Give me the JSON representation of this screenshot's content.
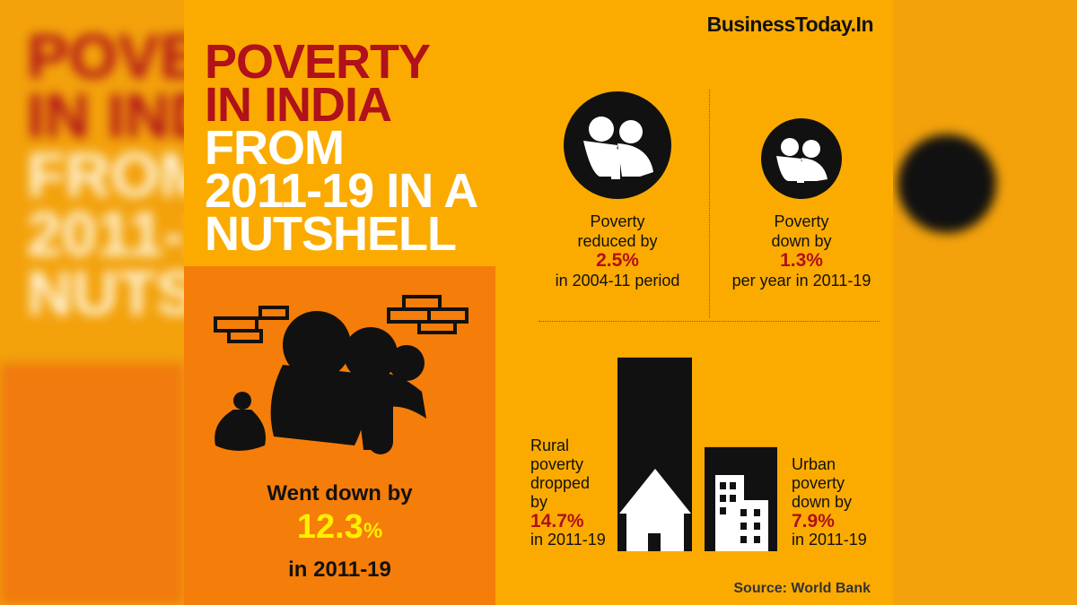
{
  "brand": "BusinessToday.In",
  "title": [
    "POVERTY",
    "IN INDIA",
    "FROM",
    "2011-19 IN A",
    "NUTSHELL"
  ],
  "highlight": {
    "lead": "Went down by",
    "figure": "12.3",
    "unit": "%",
    "period": "in 2011-19"
  },
  "stats": [
    {
      "line1": "Poverty",
      "line2": "reduced by",
      "figure": "2.5%",
      "line3": "in 2004-11 period"
    },
    {
      "line1": "Poverty",
      "line2": "down by",
      "figure": "1.3%",
      "line3": "per year in 2011-19"
    }
  ],
  "rural": {
    "lines": [
      "Rural",
      "poverty",
      "dropped",
      "by"
    ],
    "value": 14.7,
    "value_label": "14.7%",
    "period": "in 2011-19"
  },
  "urban": {
    "lines": [
      "Urban",
      "poverty",
      "down by"
    ],
    "value": 7.9,
    "value_label": "7.9%",
    "period": "in 2011-19"
  },
  "source": "Source: World Bank"
}
